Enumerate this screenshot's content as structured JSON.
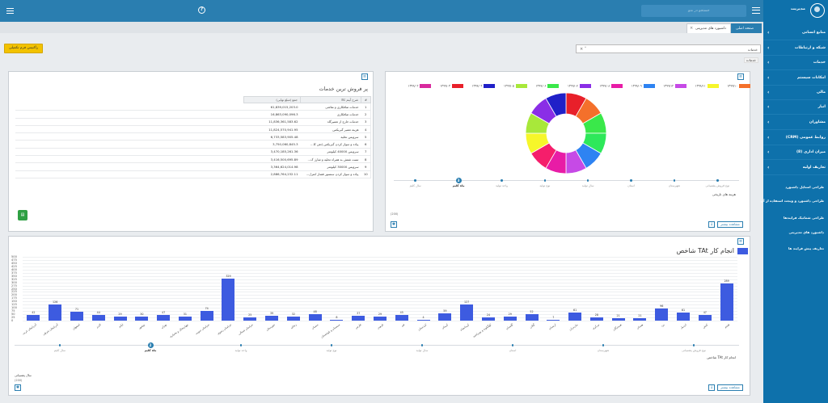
{
  "topbar": {
    "search_placeholder": "جستجو در منو"
  },
  "sidebar": {
    "user_name": "مدیریت",
    "items": [
      {
        "label": "منابع انسانی"
      },
      {
        "label": "شبکه و ارتباطات"
      },
      {
        "label": "خدمات"
      },
      {
        "label": "امکانات سیستم"
      },
      {
        "label": "مالی"
      },
      {
        "label": "انبار"
      },
      {
        "label": "مشاوران"
      },
      {
        "label": "(CRM) روابط عمومی"
      },
      {
        "label": "(8) میزان اداری"
      },
      {
        "label": "تعاریف اولیه"
      }
    ],
    "subitems": [
      {
        "label": "طراحی استایل داشبورد"
      },
      {
        "label": "طراحی داشبورد و ویجت استفاده از آن"
      },
      {
        "label": "طراحی شماتیک فرایندها"
      },
      {
        "label": "داشبورد های مدیریتی"
      },
      {
        "label": "تعاریف پیش فرایند ها"
      }
    ]
  },
  "tabs": {
    "home": "صفحه اصلی",
    "dashboard": "داشبورد های مدیریتی"
  },
  "toolbar": {
    "button_label": "راکنیس فرم تکمیلی"
  },
  "filter": {
    "value": "خدمات",
    "tag": "خدمات"
  },
  "donut_panel": {
    "legend": [
      {
        "label": "۱۳۹۹/۱۰",
        "color": "#f4702b"
      },
      {
        "label": "۱۳۹۹/۱۱",
        "color": "#f6f62a"
      },
      {
        "label": "۱۳۹۹/۱۲",
        "color": "#c64ae6"
      },
      {
        "label": "۱۳۹۹/۰۹",
        "color": "#2e83f2"
      },
      {
        "label": "۱۳۹۹/۰۸",
        "color": "#e81ca6"
      },
      {
        "label": "۱۳۹۹/۰۷",
        "color": "#8a2ee6"
      },
      {
        "label": "۱۳۹۹/۰۶",
        "color": "#3ae84a"
      },
      {
        "label": "۱۳۹۹/۰۵",
        "color": "#a8e83a"
      },
      {
        "label": "۱۳۹۹/۰۴",
        "color": "#2020c8"
      },
      {
        "label": "۱۳۹۹/۰۳",
        "color": "#e8202a"
      },
      {
        "label": "۱۳۹۹/۰۲",
        "color": "#d82a9e"
      }
    ],
    "timeline": [
      "نوع فروش پشتیبانی",
      "شهرستان",
      "استان",
      "سال تولید",
      "نوع تولید",
      "واحد تولید",
      "ماه کلیم",
      "سال کلیم"
    ],
    "timeline_active_index": 6,
    "timeline_active_number": "3",
    "caption": "هزینه های تاریخی",
    "footnote": "(200)",
    "button": "مشاهده بیشتر"
  },
  "table_panel": {
    "title": "پر فروش ترین خدمات",
    "columns": [
      "#",
      "شرح آیتم کالا",
      "جمع (مبلغ نهایی)"
    ],
    "rows": [
      {
        "n": "1",
        "name": "خدمات صافکاری و نقاشی",
        "amount": "61,839,015,203.0"
      },
      {
        "n": "2",
        "name": "خدمات صافکاری",
        "amount": "16,863,090,096.3"
      },
      {
        "n": "3",
        "name": "خدمات خارج از تعمیرگاه",
        "amount": "11,836,361,583.62"
      },
      {
        "n": "4",
        "name": "هزینه تعمیر گیربکس",
        "amount": "11,824,570,941.95"
      },
      {
        "n": "5",
        "name": "سرویس تخلیه",
        "amount": "6,733,583,905.48"
      },
      {
        "n": "6",
        "name": "پیاده و سوار کردن گیربکس (تعن کا...",
        "amount": "3,750,060,845.3"
      },
      {
        "n": "7",
        "name": "سرویس 40000 کیلومتر",
        "amount": "3,470,185,261.36"
      },
      {
        "n": "8",
        "name": "تست شتش به همراه تخلیه و شارژ ک...",
        "amount": "3,416,500,695.89"
      },
      {
        "n": "9",
        "name": "سرویس 30000 کیلومتر",
        "amount": "3,364,624,014.98"
      },
      {
        "n": "10",
        "name": "پیاده و سوار کردن سنسور فشار کنترل...",
        "amount": "2,886,764,232.11"
      }
    ]
  },
  "bar_panel": {
    "button": "مشاهده بیشتر",
    "timeline": [
      "نوع فروش پشتیبانی",
      "شهرستان",
      "استان",
      "سال تولید",
      "نوع تولید",
      "واحد تولید",
      "ماه کلیم",
      "سال کلیم"
    ],
    "timeline_active_index": 6,
    "timeline_active_number": "2",
    "caption": "شاخص TAt انجام کار",
    "subcaption": "سال پشتیبانی",
    "footnote": "(200)"
  },
  "chart_data": {
    "type": "bar",
    "title": "شاخص TAt انجام کار",
    "series": [
      {
        "name": "شاخص TAt انجام کار"
      }
    ],
    "ylim": [
      0,
      500
    ],
    "yticks": [
      0,
      25,
      50,
      75,
      100,
      125,
      150,
      175,
      200,
      225,
      250,
      275,
      300,
      325,
      350,
      375,
      400,
      425,
      450,
      475,
      500
    ],
    "categories": [
      "آذربایجان غربی",
      "آذربایجان شرقی",
      "اصفهان",
      "البرز",
      "ایلام",
      "بوشهر",
      "تهران",
      "چهارمحال و بختیاری",
      "خراسان جنوبی",
      "خراسان رضوی",
      "خراسان شمالی",
      "خوزستان",
      "زنجان",
      "سمنان",
      "سیستان و بلوچستان",
      "فارس",
      "قزوین",
      "قم",
      "کردستان",
      "کرمان",
      "کرمانشاه",
      "کهگیلویه و بویراحمد",
      "گلستان",
      "گیلان",
      "لرستان",
      "مازندران",
      "مرکزی",
      "هرمزگان",
      "همدان",
      "یزد",
      "اردبیل",
      "کیش",
      "قشم"
    ],
    "values": [
      42,
      126,
      71,
      44,
      29,
      30,
      47,
      31,
      74,
      329,
      25,
      39,
      32,
      48,
      8,
      37,
      29,
      45,
      4,
      59,
      127,
      24,
      29,
      52,
      7,
      61,
      28,
      21,
      21,
      96,
      61,
      47,
      289
    ]
  }
}
